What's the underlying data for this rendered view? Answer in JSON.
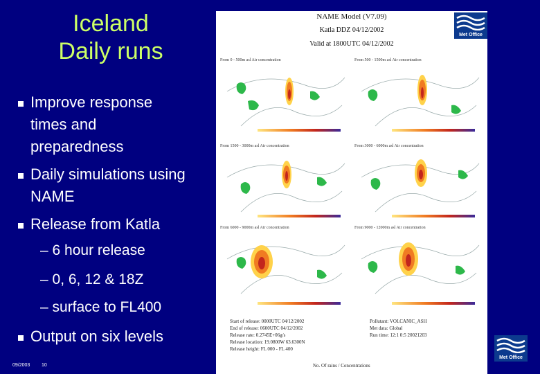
{
  "slide": {
    "title_line1": "Iceland",
    "title_line2": "Daily runs",
    "bullets": [
      {
        "lines": [
          "Improve response",
          "times and",
          "preparedness"
        ]
      },
      {
        "lines": [
          "Daily simulations using",
          "NAME"
        ]
      },
      {
        "lines": [
          "Release from Katla"
        ]
      },
      {
        "lines": [
          "Output on six levels"
        ]
      }
    ],
    "sub_bullets": [
      "– 6 hour release",
      "– 0, 6, 12 & 18Z",
      "– surface to FL400"
    ],
    "footer_date": "09/2003",
    "footer_page": "10"
  },
  "figure": {
    "title": "NAME Model (V7.09)",
    "subtitle": "Katla DDZ 04/12/2002",
    "valid": "Valid at 1800UTC 04/12/2002",
    "panels": [
      {
        "label": "From 0 - 500m asl Air concentration"
      },
      {
        "label": "From 500 - 1500m asl Air concentration"
      },
      {
        "label": "From 1500 - 3000m asl Air concentration"
      },
      {
        "label": "From 3000 - 6000m asl Air concentration"
      },
      {
        "label": "From 6000 - 9000m asl Air concentration"
      },
      {
        "label": "From 9000 - 12000m asl Air concentration"
      }
    ],
    "info_left": [
      "Start of release: 0000UTC 04/12/2002",
      "End of release: 0600UTC 04/12/2002",
      "Release rate: 0.2745E+06g/s",
      "Release location: 19.0800W 63.6300N",
      "Release height: FL 000 - FL 400"
    ],
    "info_right": [
      "Pollutant: VOLCANIC_ASH",
      "Met data: Global",
      "Run time: 12:1 0:5 20021203"
    ],
    "bottom_note": "No. Of rains / Concentrations",
    "logo_text": "Met Office"
  }
}
